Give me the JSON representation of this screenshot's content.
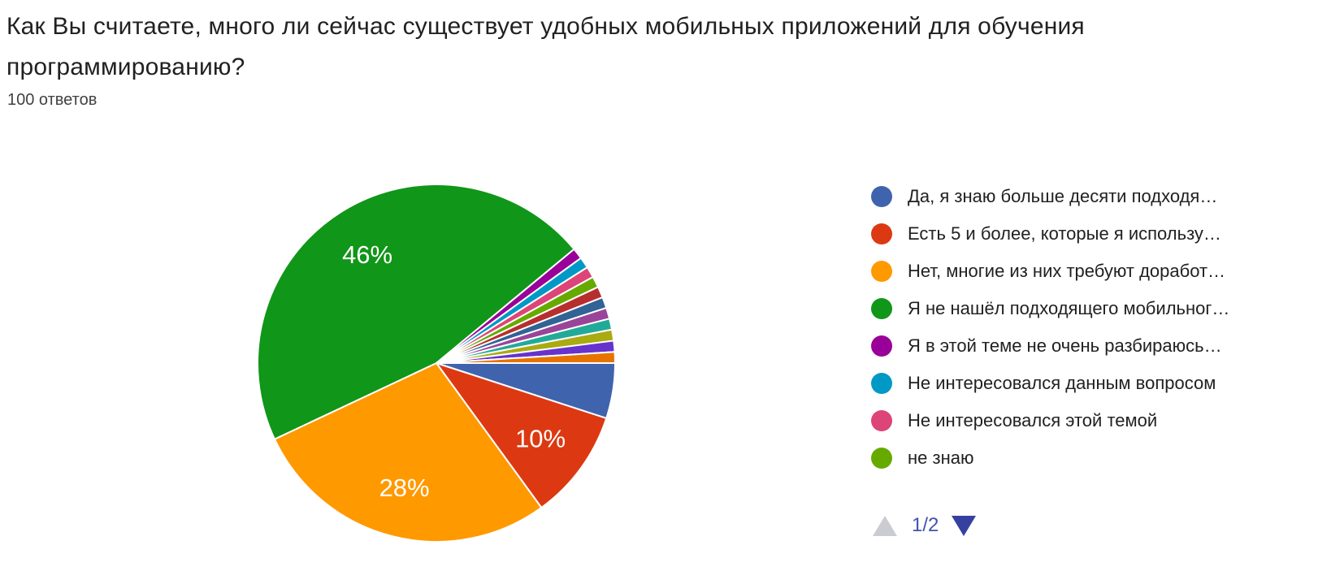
{
  "header": {
    "title": "Как Вы считаете, много ли сейчас существует удобных мобильных приложений для обучения программированию?",
    "responses_count": "100 ответов"
  },
  "chart_data": {
    "type": "pie",
    "title": "Как Вы считаете, много ли сейчас существует удобных мобильных приложений для обучения программированию?",
    "total_responses": 100,
    "start_angle_deg": 0,
    "direction": "clockwise",
    "legend_position": "right",
    "slices": [
      {
        "label": "Да, я знаю больше десяти подходя…",
        "percent": 5,
        "color": "#4063ad",
        "display_label": ""
      },
      {
        "label": "Есть 5 и более, которые я использу…",
        "percent": 10,
        "color": "#dc3912",
        "display_label": "10%"
      },
      {
        "label": "Нет, многие из них требуют доработ…",
        "percent": 28,
        "color": "#ff9900",
        "display_label": "28%"
      },
      {
        "label": "Я не нашёл подходящего мобильног…",
        "percent": 46,
        "color": "#109618",
        "display_label": "46%"
      },
      {
        "label": "Я в этой теме не очень разбираюсь…",
        "percent": 1,
        "color": "#990099",
        "display_label": ""
      },
      {
        "label": "Не интересовался данным вопросом",
        "percent": 1,
        "color": "#0099c6",
        "display_label": ""
      },
      {
        "label": "Не интересовался этой темой",
        "percent": 1,
        "color": "#dd4477",
        "display_label": ""
      },
      {
        "label": "не знаю",
        "percent": 1,
        "color": "#66aa00",
        "display_label": ""
      },
      {
        "label": "",
        "percent": 1,
        "color": "#b82e2e",
        "display_label": ""
      },
      {
        "label": "",
        "percent": 1,
        "color": "#316395",
        "display_label": ""
      },
      {
        "label": "",
        "percent": 1,
        "color": "#994499",
        "display_label": ""
      },
      {
        "label": "",
        "percent": 1,
        "color": "#22aa99",
        "display_label": ""
      },
      {
        "label": "",
        "percent": 1,
        "color": "#aaaa11",
        "display_label": ""
      },
      {
        "label": "",
        "percent": 1,
        "color": "#6633cc",
        "display_label": ""
      },
      {
        "label": "",
        "percent": 1,
        "color": "#e67300",
        "display_label": ""
      }
    ]
  },
  "legend": {
    "visible_count": 8
  },
  "pagination": {
    "label": "1/2",
    "up_arrow_color": "#cbccd1",
    "down_arrow_color": "#3640a0",
    "text_color": "#4352af"
  }
}
